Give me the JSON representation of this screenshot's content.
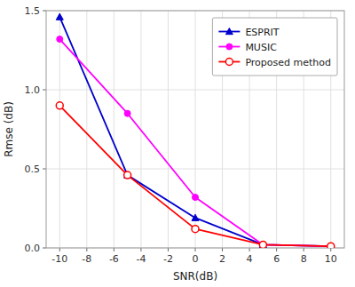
{
  "chart_data": {
    "type": "line",
    "xlabel": "SNR(dB)",
    "ylabel": "Rmse (dB)",
    "x": [
      -10,
      -5,
      0,
      5,
      10
    ],
    "series": [
      {
        "name": "ESPRIT",
        "color": "#0000CD",
        "marker": "triangle",
        "values": [
          1.46,
          0.46,
          0.19,
          0.02,
          0.01
        ]
      },
      {
        "name": "MUSIC",
        "color": "#FF00FF",
        "marker": "circle",
        "values": [
          1.32,
          0.85,
          0.32,
          0.02,
          0.01
        ]
      },
      {
        "name": "Proposed method",
        "color": "#FF0000",
        "marker": "open-circle",
        "values": [
          0.9,
          0.46,
          0.12,
          0.02,
          0.01
        ]
      }
    ],
    "xlim": [
      -11,
      11
    ],
    "ylim": [
      0,
      1.5
    ],
    "xticks": [
      -10,
      -8,
      -6,
      -4,
      -2,
      0,
      2,
      4,
      6,
      8,
      10
    ],
    "yticks": [
      {
        "value": 0,
        "label": "0.0"
      },
      0.5,
      {
        "value": 1,
        "label": "1.0"
      },
      1.5
    ],
    "grid": true,
    "legend": "upper right"
  }
}
